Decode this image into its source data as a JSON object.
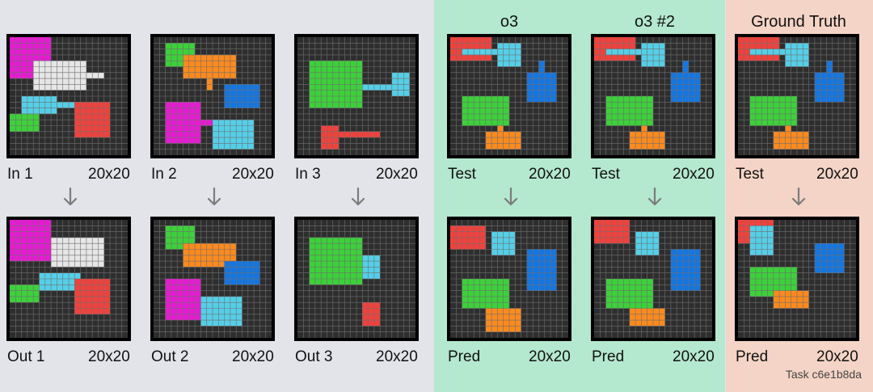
{
  "headers": {
    "o3": "o3",
    "o3_2": "o3 #2",
    "gt": "Ground Truth"
  },
  "task_id": "Task c6e1b8da",
  "colors": {
    "bg_cell": "#2e2e2e",
    "grid_line": "#6f6f6f",
    "magenta": "#e61ad2",
    "white": "#e6e6e6",
    "cyan": "#55cfe8",
    "green": "#3cd13a",
    "red": "#f0413c",
    "orange": "#fb8a1e",
    "blue": "#1476e0",
    "arrow": "#7c7c7c"
  },
  "panels": [
    {
      "id": "in1",
      "label": "In 1",
      "size": "20x20",
      "rects": [
        [
          "magenta",
          0,
          0,
          7,
          7
        ],
        [
          "white",
          4,
          4,
          9,
          5
        ],
        [
          "white",
          13,
          6,
          3,
          1
        ],
        [
          "cyan",
          2,
          10,
          6,
          3
        ],
        [
          "cyan",
          8,
          11,
          4,
          1
        ],
        [
          "green",
          0,
          13,
          5,
          3
        ],
        [
          "red",
          11,
          11,
          6,
          6
        ]
      ]
    },
    {
      "id": "in2",
      "label": "In 2",
      "size": "20x20",
      "rects": [
        [
          "green",
          2,
          1,
          5,
          4
        ],
        [
          "orange",
          5,
          3,
          9,
          4
        ],
        [
          "orange",
          9,
          7,
          1,
          2
        ],
        [
          "blue",
          12,
          8,
          6,
          4
        ],
        [
          "magenta",
          2,
          11,
          6,
          7
        ],
        [
          "magenta",
          8,
          14,
          2,
          1
        ],
        [
          "cyan",
          10,
          14,
          7,
          5
        ]
      ]
    },
    {
      "id": "in3",
      "label": "In 3",
      "size": "20x20",
      "rects": [
        [
          "green",
          2,
          4,
          9,
          8
        ],
        [
          "cyan",
          11,
          8,
          5,
          1
        ],
        [
          "cyan",
          16,
          6,
          3,
          4
        ],
        [
          "red",
          4,
          15,
          3,
          4
        ],
        [
          "red",
          7,
          16,
          7,
          1
        ]
      ]
    },
    {
      "id": "test1",
      "label": "Test",
      "size": "20x20",
      "rects": [
        [
          "red",
          0,
          0,
          7,
          4
        ],
        [
          "cyan",
          2,
          2,
          5,
          1
        ],
        [
          "cyan",
          7,
          2,
          1,
          1
        ],
        [
          "cyan",
          8,
          1,
          4,
          4
        ],
        [
          "blue",
          13,
          6,
          5,
          5
        ],
        [
          "blue",
          15,
          4,
          1,
          2
        ],
        [
          "green",
          2,
          10,
          8,
          5
        ],
        [
          "orange",
          6,
          16,
          6,
          3
        ],
        [
          "orange",
          8,
          15,
          1,
          1
        ]
      ]
    },
    {
      "id": "pred1",
      "label": "Pred",
      "size": "20x20",
      "rects": [
        [
          "red",
          0,
          1,
          6,
          4
        ],
        [
          "cyan",
          7,
          2,
          4,
          4
        ],
        [
          "blue",
          13,
          5,
          5,
          7
        ],
        [
          "green",
          2,
          10,
          8,
          5
        ],
        [
          "orange",
          6,
          15,
          6,
          4
        ]
      ]
    },
    {
      "id": "test2",
      "label": "Test",
      "size": "20x20",
      "rects": [
        [
          "red",
          0,
          0,
          7,
          4
        ],
        [
          "cyan",
          2,
          2,
          5,
          1
        ],
        [
          "cyan",
          7,
          2,
          1,
          1
        ],
        [
          "cyan",
          8,
          1,
          4,
          4
        ],
        [
          "blue",
          13,
          6,
          5,
          5
        ],
        [
          "blue",
          15,
          4,
          1,
          2
        ],
        [
          "green",
          2,
          10,
          8,
          5
        ],
        [
          "orange",
          6,
          16,
          6,
          3
        ],
        [
          "orange",
          8,
          15,
          1,
          1
        ]
      ]
    },
    {
      "id": "pred2",
      "label": "Pred",
      "size": "20x20",
      "rects": [
        [
          "red",
          0,
          0,
          6,
          4
        ],
        [
          "cyan",
          7,
          2,
          4,
          4
        ],
        [
          "blue",
          13,
          5,
          5,
          7
        ],
        [
          "green",
          2,
          10,
          8,
          5
        ],
        [
          "orange",
          6,
          15,
          6,
          3
        ]
      ]
    },
    {
      "id": "test3",
      "label": "Test",
      "size": "20x20",
      "rects": [
        [
          "red",
          0,
          0,
          7,
          4
        ],
        [
          "cyan",
          2,
          2,
          5,
          1
        ],
        [
          "cyan",
          7,
          2,
          1,
          1
        ],
        [
          "cyan",
          8,
          1,
          4,
          4
        ],
        [
          "blue",
          13,
          6,
          5,
          5
        ],
        [
          "blue",
          15,
          4,
          1,
          2
        ],
        [
          "green",
          2,
          10,
          8,
          5
        ],
        [
          "orange",
          6,
          16,
          6,
          3
        ],
        [
          "orange",
          8,
          15,
          1,
          1
        ]
      ]
    },
    {
      "id": "gt1",
      "label": "Pred",
      "size": "20x20",
      "rects": [
        [
          "red",
          0,
          0,
          6,
          4
        ],
        [
          "cyan",
          2,
          1,
          4,
          5
        ],
        [
          "blue",
          13,
          4,
          5,
          5
        ],
        [
          "green",
          2,
          8,
          8,
          5
        ],
        [
          "orange",
          6,
          12,
          6,
          3
        ]
      ]
    },
    {
      "id": "out1",
      "label": "Out 1",
      "size": "20x20",
      "rects": [
        [
          "magenta",
          0,
          0,
          7,
          7
        ],
        [
          "white",
          7,
          3,
          9,
          5
        ],
        [
          "cyan",
          5,
          9,
          7,
          3
        ],
        [
          "green",
          0,
          11,
          5,
          3
        ],
        [
          "red",
          11,
          10,
          6,
          6
        ]
      ]
    },
    {
      "id": "out2",
      "label": "Out 2",
      "size": "20x20",
      "rects": [
        [
          "green",
          2,
          1,
          5,
          4
        ],
        [
          "orange",
          5,
          4,
          9,
          4
        ],
        [
          "blue",
          12,
          7,
          6,
          4
        ],
        [
          "magenta",
          2,
          10,
          6,
          7
        ],
        [
          "cyan",
          8,
          13,
          7,
          5
        ]
      ]
    },
    {
      "id": "out3",
      "label": "Out 3",
      "size": "20x20",
      "rects": [
        [
          "green",
          2,
          3,
          9,
          8
        ],
        [
          "cyan",
          11,
          6,
          3,
          4
        ],
        [
          "red",
          11,
          14,
          3,
          4
        ]
      ]
    }
  ]
}
